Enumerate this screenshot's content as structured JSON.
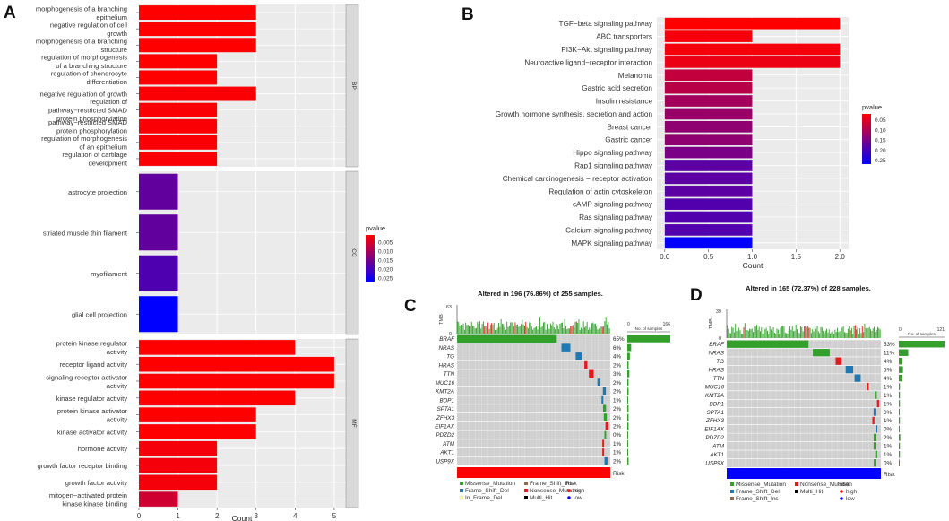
{
  "panel_labels": {
    "a": "A",
    "b": "B",
    "c": "C",
    "d": "D"
  },
  "chart_data": [
    {
      "panel": "A",
      "type": "bar",
      "orientation": "horizontal",
      "xlabel": "Count",
      "xlim": [
        0,
        5.3
      ],
      "xticks": [
        0,
        1,
        2,
        3,
        4,
        5
      ],
      "legend": {
        "title": "pvalue",
        "ticks": [
          "0.005",
          "0.010",
          "0.015",
          "0.020",
          "0.025"
        ],
        "range": [
          0.001,
          0.027
        ],
        "colors": [
          "#ff0000",
          "#0000ff"
        ]
      },
      "facets": [
        {
          "name": "BP",
          "rows": [
            {
              "label": "morphogenesis of a branching epithelium",
              "lines": [
                "morphogenesis of a branching",
                "epithelium"
              ],
              "count": 3,
              "p": 0.001
            },
            {
              "label": "negative regulation of cell growth",
              "lines": [
                "negative regulation of cell",
                "growth"
              ],
              "count": 3,
              "p": 0.001
            },
            {
              "label": "morphogenesis of a branching structure",
              "lines": [
                "morphogenesis of a branching",
                "structure"
              ],
              "count": 3,
              "p": 0.001
            },
            {
              "label": "regulation of morphogenesis of a branching structure",
              "lines": [
                "regulation of morphogenesis",
                "of a branching structure"
              ],
              "count": 2,
              "p": 0.001
            },
            {
              "label": "regulation of chondrocyte differentiation",
              "lines": [
                "regulation of chondrocyte",
                "differentiation"
              ],
              "count": 2,
              "p": 0.001
            },
            {
              "label": "negative regulation of growth",
              "lines": [
                "negative regulation of growth"
              ],
              "count": 3,
              "p": 0.0015
            },
            {
              "label": "regulation of pathway-restricted SMAD protein phosphorylation",
              "lines": [
                "regulation of",
                "pathway−restricted SMAD",
                "protein phosphorylation"
              ],
              "count": 2,
              "p": 0.0015
            },
            {
              "label": "pathway-restricted SMAD protein phosphorylation",
              "lines": [
                "pathway−restricted SMAD",
                "protein phosphorylation"
              ],
              "count": 2,
              "p": 0.0015
            },
            {
              "label": "regulation of morphogenesis of an epithelium",
              "lines": [
                "regulation of morphogenesis",
                "of an epithelium"
              ],
              "count": 2,
              "p": 0.0015
            },
            {
              "label": "regulation of cartilage development",
              "lines": [
                "regulation of cartilage",
                "development"
              ],
              "count": 2,
              "p": 0.0015
            }
          ]
        },
        {
          "name": "CC",
          "rows": [
            {
              "label": "astrocyte projection",
              "lines": [
                "astrocyte projection"
              ],
              "count": 1,
              "p": 0.017
            },
            {
              "label": "striated muscle thin filament",
              "lines": [
                "striated muscle thin filament"
              ],
              "count": 1,
              "p": 0.017
            },
            {
              "label": "myofilament",
              "lines": [
                "myofilament"
              ],
              "count": 1,
              "p": 0.019
            },
            {
              "label": "glial cell projection",
              "lines": [
                "glial cell projection"
              ],
              "count": 1,
              "p": 0.027
            }
          ]
        },
        {
          "name": "MF",
          "rows": [
            {
              "label": "protein kinase regulator activity",
              "lines": [
                "protein kinase regulator",
                "activity"
              ],
              "count": 4,
              "p": 0.001
            },
            {
              "label": "receptor ligand activity",
              "lines": [
                "receptor ligand activity"
              ],
              "count": 5,
              "p": 0.001
            },
            {
              "label": "signaling receptor activator activity",
              "lines": [
                "signaling receptor activator",
                "activity"
              ],
              "count": 5,
              "p": 0.001
            },
            {
              "label": "kinase regulator activity",
              "lines": [
                "kinase regulator activity"
              ],
              "count": 4,
              "p": 0.001
            },
            {
              "label": "protein kinase activator activity",
              "lines": [
                "protein kinase activator",
                "activity"
              ],
              "count": 3,
              "p": 0.001
            },
            {
              "label": "kinase activator activity",
              "lines": [
                "kinase activator activity"
              ],
              "count": 3,
              "p": 0.001
            },
            {
              "label": "hormone activity",
              "lines": [
                "hormone activity"
              ],
              "count": 2,
              "p": 0.002
            },
            {
              "label": "growth factor receptor binding",
              "lines": [
                "growth factor receptor binding"
              ],
              "count": 2,
              "p": 0.002
            },
            {
              "label": "growth factor activity",
              "lines": [
                "growth factor activity"
              ],
              "count": 2,
              "p": 0.002
            },
            {
              "label": "mitogen-activated protein kinase kinase binding",
              "lines": [
                "mitogen−activated protein",
                "kinase kinase binding"
              ],
              "count": 1,
              "p": 0.006
            }
          ]
        }
      ]
    },
    {
      "panel": "B",
      "type": "bar",
      "orientation": "horizontal",
      "xlabel": "Count",
      "xlim": [
        -0.09,
        2.1
      ],
      "xticks": [
        "0.0",
        "0.5",
        "1.0",
        "1.5",
        "2.0"
      ],
      "legend": {
        "title": "pvalue",
        "ticks": [
          "0.05",
          "0.10",
          "0.15",
          "0.20",
          "0.25"
        ],
        "range": [
          0.02,
          0.27
        ],
        "colors": [
          "#ff0000",
          "#0000ff"
        ]
      },
      "rows": [
        {
          "label": "TGF−beta signaling pathway",
          "count": 2,
          "p": 0.02
        },
        {
          "label": "ABC transporters",
          "count": 1,
          "p": 0.03
        },
        {
          "label": "PI3K−Akt signaling pathway",
          "count": 2,
          "p": 0.03
        },
        {
          "label": "Neuroactive ligand−receptor interaction",
          "count": 2,
          "p": 0.04
        },
        {
          "label": "Melanoma",
          "count": 1,
          "p": 0.08
        },
        {
          "label": "Gastric acid secretion",
          "count": 1,
          "p": 0.09
        },
        {
          "label": "Insulin resistance",
          "count": 1,
          "p": 0.11
        },
        {
          "label": "Growth hormone synthesis, secretion and action",
          "count": 1,
          "p": 0.12
        },
        {
          "label": "Breast cancer",
          "count": 1,
          "p": 0.13
        },
        {
          "label": "Gastric cancer",
          "count": 1,
          "p": 0.13
        },
        {
          "label": "Hippo signaling pathway",
          "count": 1,
          "p": 0.15
        },
        {
          "label": "Rap1 signaling pathway",
          "count": 1,
          "p": 0.18
        },
        {
          "label": "Chemical carcinogenesis − receptor activation",
          "count": 1,
          "p": 0.18
        },
        {
          "label": "Regulation of actin cytoskeleton",
          "count": 1,
          "p": 0.18
        },
        {
          "label": "cAMP signaling pathway",
          "count": 1,
          "p": 0.19
        },
        {
          "label": "Ras signaling pathway",
          "count": 1,
          "p": 0.19
        },
        {
          "label": "Calcium signaling pathway",
          "count": 1,
          "p": 0.19
        },
        {
          "label": "MAPK signaling pathway",
          "count": 1,
          "p": 0.27
        }
      ]
    },
    {
      "panel": "C",
      "type": "oncoplot",
      "title": "Altered in 196 (76.86%) of 255 samples.",
      "tmb_label": "TMB",
      "tmb_max": "63",
      "tmb_min": "0",
      "samples_axis": {
        "min": "0",
        "max": "166",
        "label": "No. of samples",
        "max_value": 166
      },
      "total_samples": 255,
      "risk_label": "Risk",
      "risk_color": "#ff0000",
      "genes": [
        {
          "name": "BRAF",
          "pct": "65%",
          "n": 166
        },
        {
          "name": "NRAS",
          "pct": "6%",
          "n": 15
        },
        {
          "name": "TG",
          "pct": "4%",
          "n": 10
        },
        {
          "name": "HRAS",
          "pct": "2%",
          "n": 5
        },
        {
          "name": "TTN",
          "pct": "3%",
          "n": 8
        },
        {
          "name": "MUC16",
          "pct": "2%",
          "n": 5
        },
        {
          "name": "KMT2A",
          "pct": "2%",
          "n": 5
        },
        {
          "name": "BDP1",
          "pct": "1%",
          "n": 3
        },
        {
          "name": "SPTA1",
          "pct": "2%",
          "n": 5
        },
        {
          "name": "ZFHX3",
          "pct": "2%",
          "n": 5
        },
        {
          "name": "EIF1AX",
          "pct": "2%",
          "n": 5
        },
        {
          "name": "PDZD2",
          "pct": "0%",
          "n": 1
        },
        {
          "name": "ATM",
          "pct": "1%",
          "n": 3
        },
        {
          "name": "AKT1",
          "pct": "1%",
          "n": 3
        },
        {
          "name": "USP9X",
          "pct": "2%",
          "n": 5
        }
      ],
      "legend_mutations": [
        {
          "label": "Missense_Mutation",
          "color": "#33a02c"
        },
        {
          "label": "Frame_Shift_Ins",
          "color": "#8e6b4b"
        },
        {
          "label": "Frame_Shift_Del",
          "color": "#1f78b4"
        },
        {
          "label": "Nonsense_Mutation",
          "color": "#e31a1c"
        },
        {
          "label": "In_Frame_Del",
          "color": "#ffff99"
        },
        {
          "label": "Multi_Hit",
          "color": "#000000"
        }
      ],
      "legend_risk": {
        "title": "Risk",
        "items": [
          {
            "label": "high",
            "color": "#ff0000"
          },
          {
            "label": "low",
            "color": "#0000ff"
          }
        ]
      }
    },
    {
      "panel": "D",
      "type": "oncoplot",
      "title": "Altered in 165 (72.37%) of 228 samples.",
      "tmb_label": "TMB",
      "tmb_max": "39",
      "tmb_min": "0",
      "samples_axis": {
        "min": "0",
        "max": "121",
        "label": "No. of samples",
        "max_value": 121
      },
      "total_samples": 228,
      "risk_label": "Risk",
      "risk_color": "#0000ff",
      "genes": [
        {
          "name": "BRAF",
          "pct": "53%",
          "n": 121
        },
        {
          "name": "NRAS",
          "pct": "11%",
          "n": 25
        },
        {
          "name": "TG",
          "pct": "4%",
          "n": 9
        },
        {
          "name": "HRAS",
          "pct": "5%",
          "n": 11
        },
        {
          "name": "TTN",
          "pct": "4%",
          "n": 9
        },
        {
          "name": "MUC16",
          "pct": "1%",
          "n": 3
        },
        {
          "name": "KMT2A",
          "pct": "1%",
          "n": 3
        },
        {
          "name": "BDP1",
          "pct": "1%",
          "n": 3
        },
        {
          "name": "SPTA1",
          "pct": "0%",
          "n": 1
        },
        {
          "name": "ZFHX3",
          "pct": "1%",
          "n": 3
        },
        {
          "name": "EIF1AX",
          "pct": "0%",
          "n": 1
        },
        {
          "name": "PDZD2",
          "pct": "2%",
          "n": 4
        },
        {
          "name": "ATM",
          "pct": "1%",
          "n": 3
        },
        {
          "name": "AKT1",
          "pct": "1%",
          "n": 3
        },
        {
          "name": "USP9X",
          "pct": "0%",
          "n": 1
        }
      ],
      "legend_mutations": [
        {
          "label": "Missense_Mutation",
          "color": "#33a02c"
        },
        {
          "label": "Nonsense_Mutation",
          "color": "#e31a1c"
        },
        {
          "label": "Frame_Shift_Del",
          "color": "#1f78b4"
        },
        {
          "label": "Multi_Hit",
          "color": "#000000"
        },
        {
          "label": "Frame_Shift_Ins",
          "color": "#8e6b4b"
        }
      ],
      "legend_risk": {
        "title": "Risk",
        "items": [
          {
            "label": "high",
            "color": "#ff0000"
          },
          {
            "label": "low",
            "color": "#0000ff"
          }
        ]
      }
    }
  ]
}
